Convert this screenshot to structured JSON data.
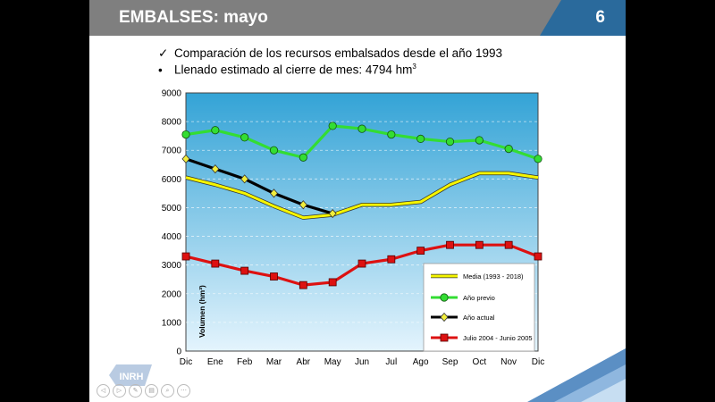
{
  "slide": {
    "title": "EMBALSES: mayo",
    "number": "6",
    "bullet1": "Comparación de los recursos embalsados desde el año 1993",
    "bullet1_mark": "✓",
    "bullet2_prefix": "Llenado estimado al cierre de mes: 4794 hm",
    "bullet2_sup": "3",
    "bullet2_mark": "•",
    "logo_text": "INRH"
  },
  "colors": {
    "header": "#7f7f7f",
    "accent": "#2a6a9c",
    "media": "#f5f500",
    "previo": "#33dd33",
    "actual": "#000000",
    "julio": "#dd1111"
  },
  "chart_data": {
    "type": "line",
    "categories": [
      "Dic",
      "Ene",
      "Feb",
      "Mar",
      "Abr",
      "May",
      "Jun",
      "Jul",
      "Ago",
      "Sep",
      "Oct",
      "Nov",
      "Dic"
    ],
    "ylim": [
      0,
      9000
    ],
    "yticks": [
      0,
      1000,
      2000,
      3000,
      4000,
      5000,
      6000,
      7000,
      8000,
      9000
    ],
    "ylabel": "Volumen (hm³)",
    "xlabel": "",
    "grid": true,
    "legend_position": "bottom-right",
    "series": [
      {
        "name": "Media (1993 - 2018)",
        "color": "#f5f500",
        "marker": "none",
        "values": [
          6050,
          5800,
          5500,
          5050,
          4650,
          4750,
          5100,
          5100,
          5200,
          5800,
          6200,
          6200,
          6050
        ]
      },
      {
        "name": "Año previo",
        "color": "#33dd33",
        "marker": "circle",
        "values": [
          7550,
          7700,
          7450,
          7000,
          6750,
          7850,
          7750,
          7550,
          7400,
          7300,
          7350,
          7050,
          6700
        ]
      },
      {
        "name": "Año actual",
        "color": "#000000",
        "marker": "diamond",
        "values": [
          6700,
          6350,
          6000,
          5500,
          5100,
          4794,
          null,
          null,
          null,
          null,
          null,
          null,
          null
        ]
      },
      {
        "name": "Julio 2004 - Junio 2005",
        "color": "#dd1111",
        "marker": "square",
        "values": [
          3300,
          3050,
          2800,
          2600,
          2300,
          2400,
          3050,
          3200,
          3500,
          3700,
          3700,
          3700,
          3300
        ]
      }
    ]
  }
}
